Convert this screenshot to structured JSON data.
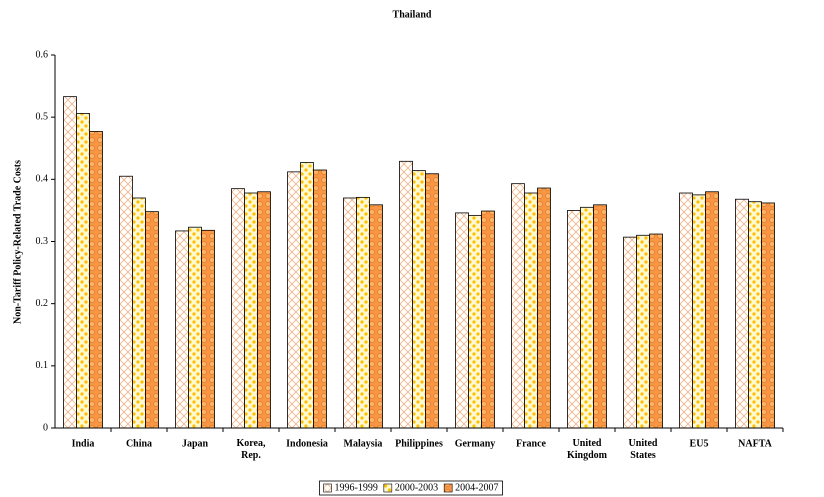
{
  "chart_data": {
    "type": "bar",
    "title": "Thailand",
    "y_label": "Non-Tariff Policy-Related Trade Costs",
    "categories": [
      "India",
      "China",
      "Japan",
      "Korea, Rep.",
      "Indonesia",
      "Malaysia",
      "Philippines",
      "Germany",
      "France",
      "United Kingdom",
      "United States",
      "EU5",
      "NAFTA"
    ],
    "series": [
      {
        "name": "1996-1999",
        "color": "#f4b183",
        "values": [
          0.533,
          0.405,
          0.317,
          0.385,
          0.412,
          0.37,
          0.429,
          0.346,
          0.393,
          0.35,
          0.307,
          0.378,
          0.368
        ]
      },
      {
        "name": "2000-2003",
        "color": "#ffc000",
        "values": [
          0.506,
          0.37,
          0.323,
          0.378,
          0.427,
          0.371,
          0.414,
          0.342,
          0.378,
          0.355,
          0.31,
          0.375,
          0.364
        ]
      },
      {
        "name": "2004-2007",
        "color": "#f79646",
        "values": [
          0.477,
          0.348,
          0.318,
          0.38,
          0.415,
          0.359,
          0.409,
          0.349,
          0.386,
          0.359,
          0.312,
          0.38,
          0.362
        ]
      }
    ],
    "ylim": [
      0,
      0.6
    ],
    "yticks": [
      0,
      0.1,
      0.2,
      0.3,
      0.4,
      0.5,
      0.6
    ],
    "grid": false,
    "legend": "bottom"
  }
}
